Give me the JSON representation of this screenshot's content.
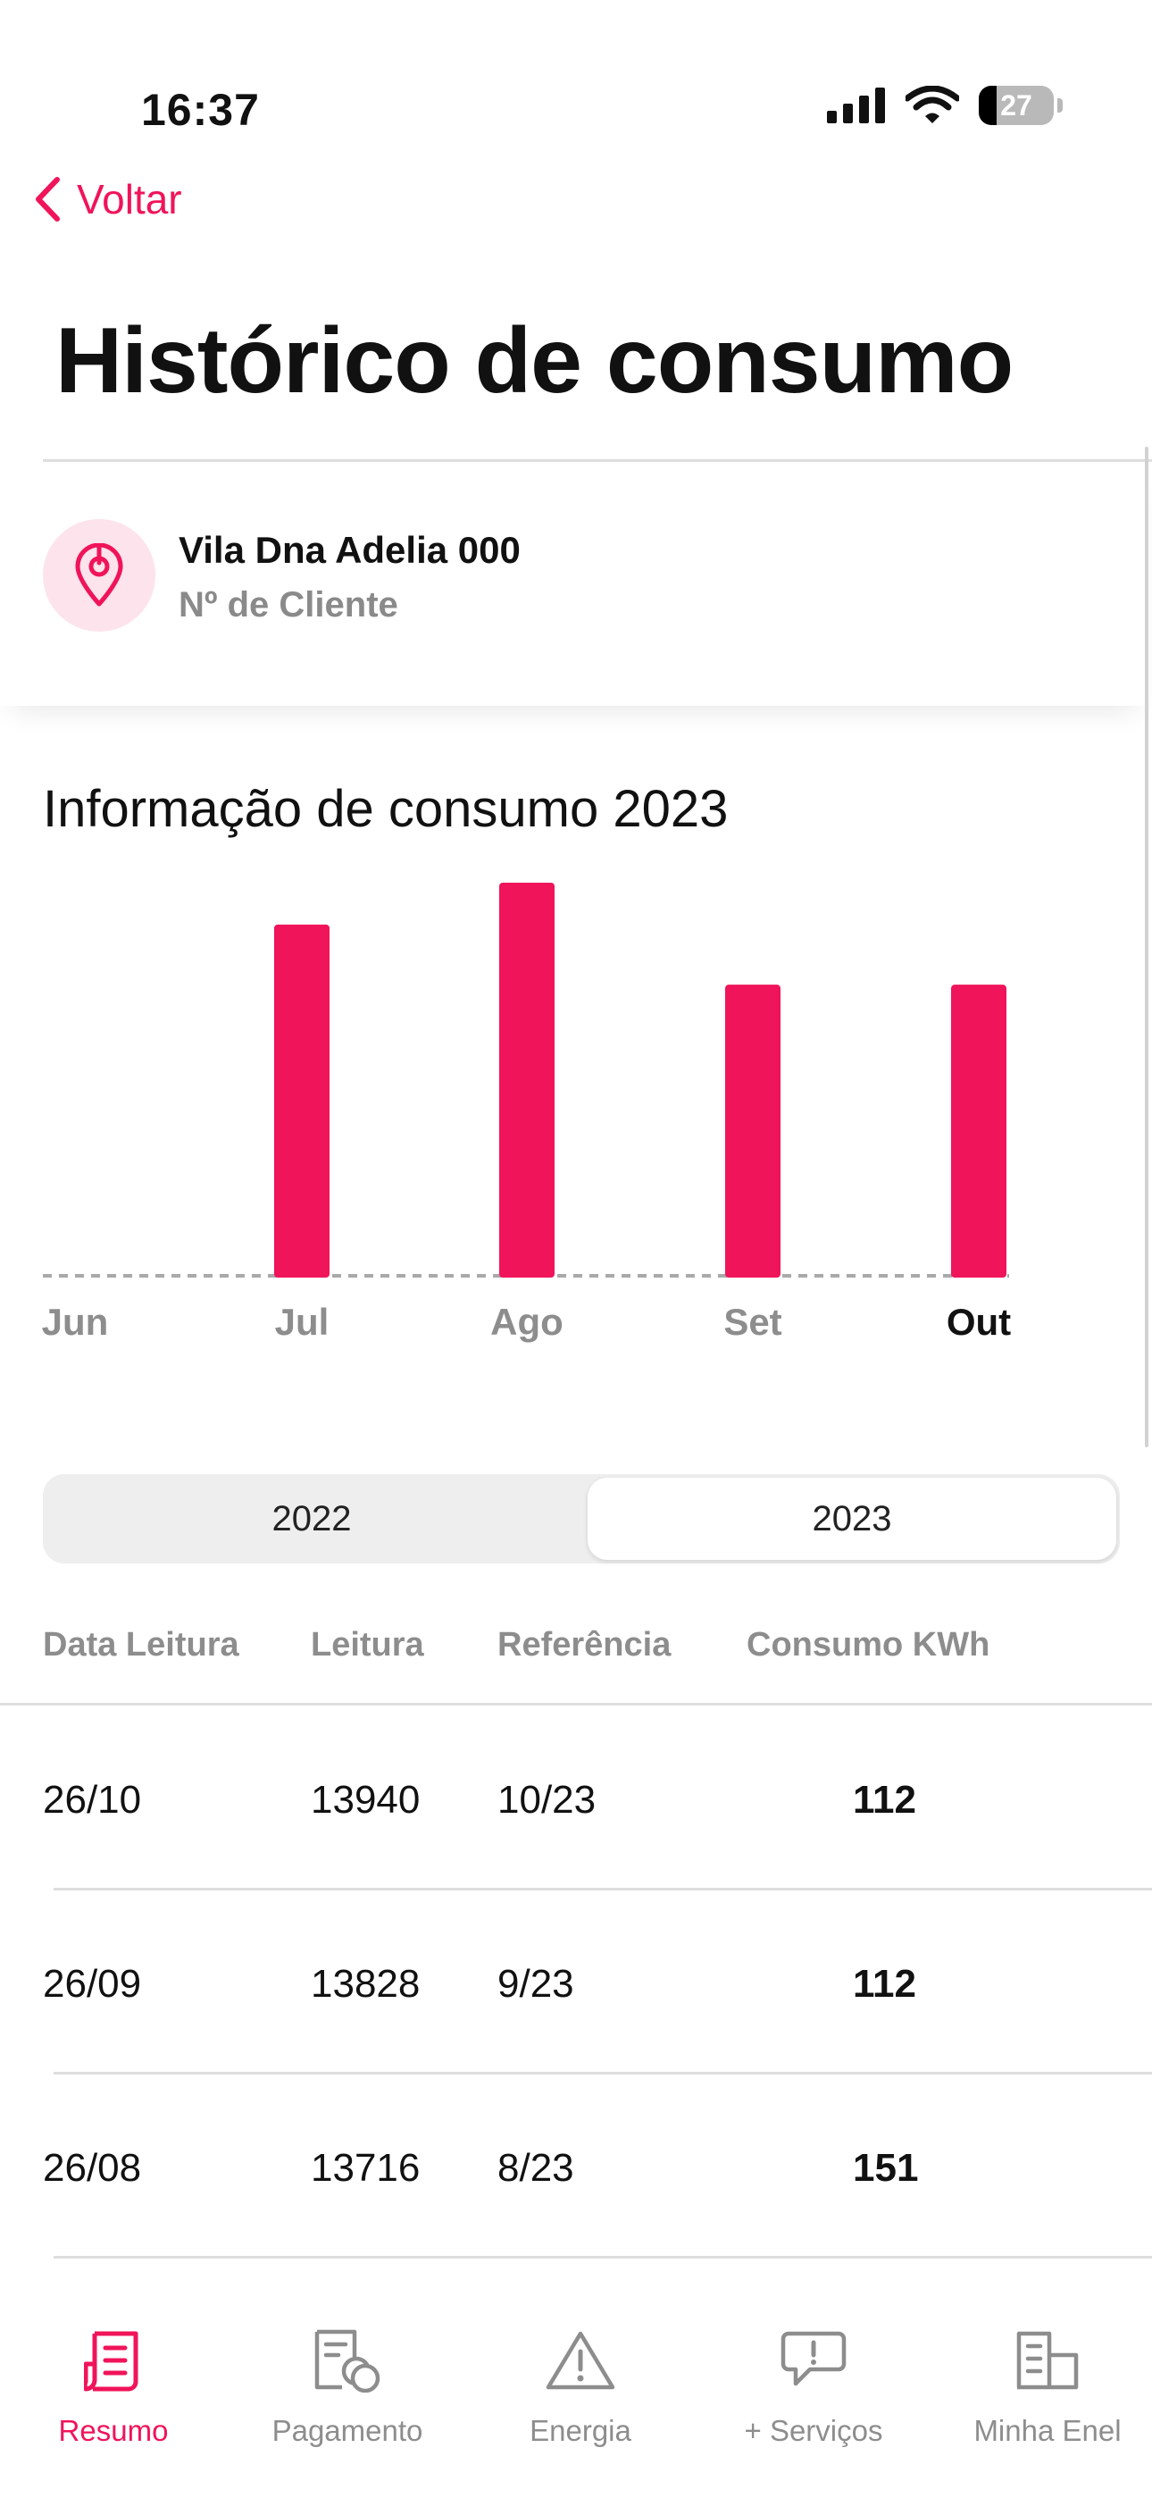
{
  "status_bar": {
    "time": "16:37",
    "battery_level": "27"
  },
  "nav": {
    "back_label": "Voltar"
  },
  "page": {
    "title": "Histórico de consumo"
  },
  "client": {
    "address": "Vila Dna Adelia 000",
    "number_label": "Nº de Cliente"
  },
  "colors": {
    "accent": "#f0145a",
    "muted": "#8d8d8d"
  },
  "chart_data": {
    "type": "bar",
    "title": "Informação de consumo 2023",
    "categories": [
      "Jun",
      "Jul",
      "Ago",
      "Set",
      "Out"
    ],
    "values": [
      0,
      135,
      151,
      112,
      112
    ],
    "highlight_category": "Out",
    "ylim": [
      0,
      151
    ],
    "grid": false,
    "legend": "none"
  },
  "years": {
    "options": [
      "2022",
      "2023"
    ],
    "selected": "2023"
  },
  "table": {
    "headers": [
      "Data Leitura",
      "Leitura",
      "Referência",
      "Consumo KWh"
    ],
    "rows": [
      [
        "26/10",
        "13940",
        "10/23",
        "112"
      ],
      [
        "26/09",
        "13828",
        "9/23",
        "112"
      ],
      [
        "26/08",
        "13716",
        "8/23",
        "151"
      ]
    ]
  },
  "tabbar": {
    "items": [
      {
        "label": "Resumo",
        "icon": "document-list-icon",
        "active": true
      },
      {
        "label": "Pagamento",
        "icon": "invoice-coins-icon",
        "active": false
      },
      {
        "label": "Energia",
        "icon": "warning-triangle-icon",
        "active": false
      },
      {
        "label": "+ Serviços",
        "icon": "chat-bubble-icon",
        "active": false
      },
      {
        "label": "Minha Enel",
        "icon": "building-icon",
        "active": false
      }
    ]
  }
}
